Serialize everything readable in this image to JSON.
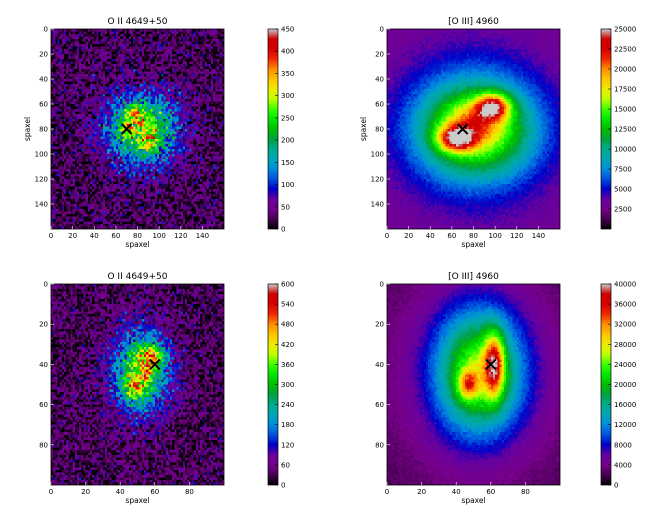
{
  "chart_data": [
    {
      "type": "heatmap",
      "title": "O II 4649+50",
      "xlabel": "spaxel",
      "ylabel": "spaxel",
      "xlim": [
        0,
        160
      ],
      "ylim": [
        160,
        0
      ],
      "xticks": [
        0,
        20,
        40,
        60,
        80,
        100,
        120,
        140
      ],
      "yticks": [
        0,
        20,
        40,
        60,
        80,
        100,
        120,
        140
      ],
      "colorbar_ticks": [
        0,
        50,
        100,
        150,
        200,
        250,
        300,
        350,
        400,
        450
      ],
      "vmax": 450,
      "colormap": "nipy_spectral",
      "marker": {
        "symbol": "x",
        "x": 70,
        "y": 80
      },
      "components": [
        {
          "cx": 84,
          "cy": 80,
          "sx": 22,
          "sy": 19,
          "amp": 0.55
        },
        {
          "cx": 80,
          "cy": 68,
          "sx": 6,
          "sy": 5,
          "amp": 0.3
        },
        {
          "cx": 90,
          "cy": 92,
          "sx": 6,
          "sy": 5,
          "amp": 0.22
        },
        {
          "cx": 70,
          "cy": 80,
          "sx": 5,
          "sy": 5,
          "amp": 0.2
        }
      ],
      "background": 0.06,
      "noise": 0.22
    },
    {
      "type": "heatmap",
      "title": "[O III] 4960",
      "xlabel": "spaxel",
      "ylabel": "spaxel",
      "xlim": [
        0,
        160
      ],
      "ylim": [
        160,
        0
      ],
      "xticks": [
        0,
        20,
        40,
        60,
        80,
        100,
        120,
        140
      ],
      "yticks": [
        0,
        20,
        40,
        60,
        80,
        100,
        120,
        140
      ],
      "colorbar_ticks": [
        2500,
        5000,
        7500,
        10000,
        12500,
        15000,
        17500,
        20000,
        22500,
        25000
      ],
      "vmax": 25000,
      "colormap": "nipy_spectral",
      "marker": {
        "symbol": "x",
        "x": 70,
        "y": 80
      },
      "components": [
        {
          "cx": 82,
          "cy": 80,
          "sx": 36,
          "sy": 26,
          "amp": 0.5
        },
        {
          "cx": 98,
          "cy": 62,
          "sx": 11,
          "sy": 7,
          "amp": 0.45
        },
        {
          "cx": 64,
          "cy": 88,
          "sx": 12,
          "sy": 7,
          "amp": 0.45
        },
        {
          "cx": 82,
          "cy": 75,
          "sx": 18,
          "sy": 10,
          "amp": 0.15
        },
        {
          "cx": 82,
          "cy": 80,
          "sx": 60,
          "sy": 55,
          "amp": 0.12
        }
      ],
      "background": 0.1,
      "noise": 0.03
    },
    {
      "type": "heatmap",
      "title": "O II 4649+50",
      "xlabel": "spaxel",
      "ylabel": "",
      "xlim": [
        0,
        100
      ],
      "ylim": [
        100,
        0
      ],
      "xticks": [
        0,
        20,
        40,
        60,
        80
      ],
      "yticks": [
        0,
        20,
        40,
        60,
        80
      ],
      "colorbar_ticks": [
        0,
        60,
        120,
        180,
        240,
        300,
        360,
        420,
        480,
        540,
        600
      ],
      "vmax": 600,
      "colormap": "nipy_spectral",
      "marker": {
        "symbol": "x",
        "x": 60,
        "y": 40
      },
      "components": [
        {
          "cx": 52,
          "cy": 44,
          "sx": 11,
          "sy": 14,
          "amp": 0.5
        },
        {
          "cx": 58,
          "cy": 36,
          "sx": 5,
          "sy": 4,
          "amp": 0.4
        },
        {
          "cx": 48,
          "cy": 51,
          "sx": 4,
          "sy": 4,
          "amp": 0.35
        },
        {
          "cx": 55,
          "cy": 44,
          "sx": 3,
          "sy": 3,
          "amp": 0.2
        }
      ],
      "background": 0.06,
      "noise": 0.2
    },
    {
      "type": "heatmap",
      "title": "[O III] 4960",
      "xlabel": "spaxel",
      "ylabel": "",
      "xlim": [
        0,
        100
      ],
      "ylim": [
        100,
        0
      ],
      "xticks": [
        0,
        20,
        40,
        60,
        80
      ],
      "yticks": [
        0,
        20,
        40,
        60,
        80
      ],
      "colorbar_ticks": [
        0,
        4000,
        8000,
        12000,
        16000,
        20000,
        24000,
        28000,
        32000,
        36000,
        40000
      ],
      "vmax": 40000,
      "colormap": "nipy_spectral",
      "marker": {
        "symbol": "x",
        "x": 60,
        "y": 40
      },
      "components": [
        {
          "cx": 53,
          "cy": 44,
          "sx": 16,
          "sy": 20,
          "amp": 0.45
        },
        {
          "cx": 62,
          "cy": 40,
          "sx": 4,
          "sy": 11,
          "amp": 0.45
        },
        {
          "cx": 47,
          "cy": 50,
          "sx": 4,
          "sy": 5,
          "amp": 0.3
        },
        {
          "cx": 53,
          "cy": 44,
          "sx": 32,
          "sy": 34,
          "amp": 0.15
        }
      ],
      "background": 0.05,
      "noise": 0.03
    }
  ]
}
